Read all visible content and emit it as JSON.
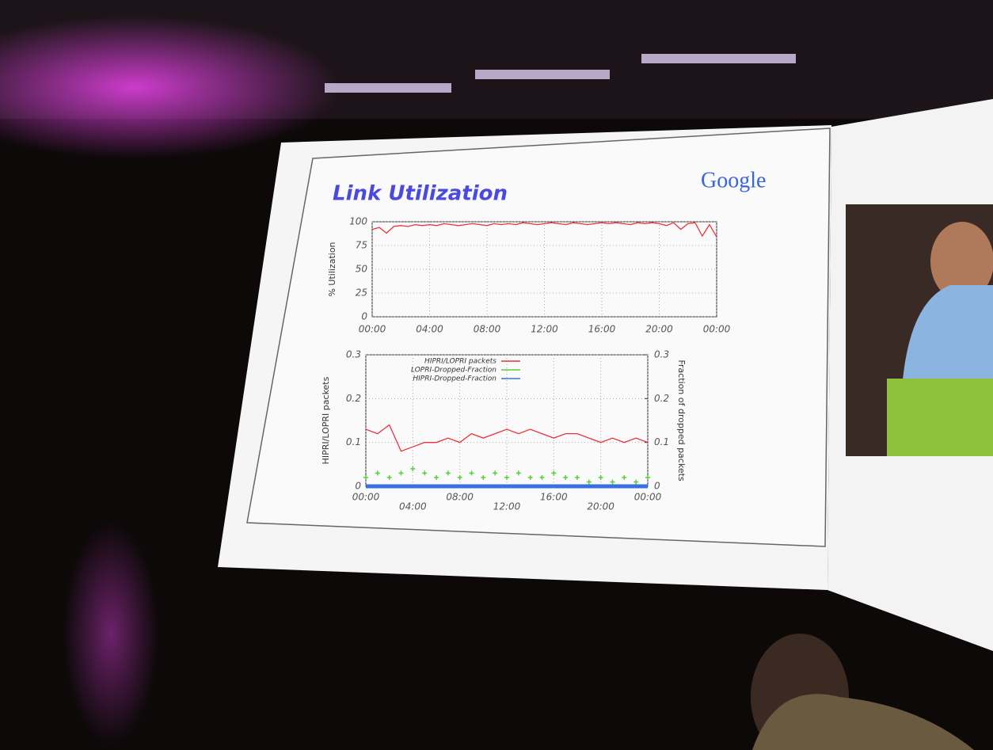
{
  "slide_title": "Link Utilization",
  "logo": "Google",
  "chart_data": [
    {
      "type": "line",
      "ylabel": "% Utilization",
      "color": "#e8333b",
      "x": [
        0,
        0.5,
        1,
        1.5,
        2,
        2.5,
        3,
        3.5,
        4,
        4.5,
        5,
        5.5,
        6,
        6.5,
        7,
        7.5,
        8,
        8.5,
        9,
        9.5,
        10,
        10.5,
        11,
        11.5,
        12,
        12.5,
        13,
        13.5,
        14,
        14.5,
        15,
        15.5,
        16,
        16.5,
        17,
        17.5,
        18,
        18.5,
        19,
        19.5,
        20,
        20.5,
        21,
        21.5,
        22,
        22.5,
        23,
        23.5,
        24
      ],
      "values": [
        92,
        94,
        88,
        95,
        96,
        95,
        97,
        96,
        97,
        96,
        98,
        97,
        96,
        97,
        98,
        97,
        96,
        98,
        97,
        98,
        97,
        99,
        98,
        97,
        98,
        99,
        98,
        97,
        99,
        98,
        97,
        98,
        99,
        98,
        99,
        98,
        97,
        99,
        98,
        99,
        98,
        96,
        99,
        92,
        98,
        99,
        85,
        97,
        84
      ],
      "xlim": [
        0,
        24
      ],
      "xticks": [
        {
          "value": 0,
          "label": "00:00"
        },
        {
          "value": 4,
          "label": "04:00"
        },
        {
          "value": 8,
          "label": "08:00"
        },
        {
          "value": 12,
          "label": "12:00"
        },
        {
          "value": 16,
          "label": "16:00"
        },
        {
          "value": 20,
          "label": "20:00"
        },
        {
          "value": 24,
          "label": "00:00"
        }
      ],
      "ylim": [
        0,
        100
      ],
      "yticks": [
        0,
        25,
        50,
        75,
        100
      ],
      "grid": true
    },
    {
      "type": "line",
      "ylabel": "HIPRI/LOPRI packets",
      "y2label": "Fraction of dropped packets",
      "legend": "top",
      "x": [
        0,
        1,
        2,
        3,
        4,
        5,
        6,
        7,
        8,
        9,
        10,
        11,
        12,
        13,
        14,
        15,
        16,
        17,
        18,
        19,
        20,
        21,
        22,
        23,
        24
      ],
      "series": [
        {
          "name": "HIPRI/LOPRI packets",
          "color": "#e8333b",
          "mode": "line",
          "values": [
            0.13,
            0.12,
            0.14,
            0.08,
            0.09,
            0.1,
            0.1,
            0.11,
            0.1,
            0.12,
            0.11,
            0.12,
            0.13,
            0.12,
            0.13,
            0.12,
            0.11,
            0.12,
            0.12,
            0.11,
            0.1,
            0.11,
            0.1,
            0.11,
            0.1
          ]
        },
        {
          "name": "LOPRI-Dropped-Fraction",
          "color": "#5ccc3a",
          "mode": "markers",
          "axis": "y2",
          "values": [
            0.02,
            0.03,
            0.02,
            0.03,
            0.04,
            0.03,
            0.02,
            0.03,
            0.02,
            0.03,
            0.02,
            0.03,
            0.02,
            0.03,
            0.02,
            0.02,
            0.03,
            0.02,
            0.02,
            0.01,
            0.02,
            0.01,
            0.02,
            0.01,
            0.02
          ]
        },
        {
          "name": "HIPRI-Dropped-Fraction",
          "color": "#3a6fe0",
          "mode": "line",
          "axis": "y2",
          "values": [
            0,
            0,
            0,
            0,
            0,
            0,
            0,
            0,
            0,
            0,
            0,
            0,
            0,
            0,
            0,
            0,
            0,
            0,
            0,
            0,
            0,
            0,
            0,
            0,
            0
          ]
        }
      ],
      "xlim": [
        0,
        24
      ],
      "xticks": [
        {
          "value": 0,
          "label": "00:00"
        },
        {
          "value": 4,
          "label": "04:00"
        },
        {
          "value": 8,
          "label": "08:00"
        },
        {
          "value": 12,
          "label": "12:00"
        },
        {
          "value": 16,
          "label": "16:00"
        },
        {
          "value": 20,
          "label": "20:00"
        },
        {
          "value": 24,
          "label": "00:00"
        }
      ],
      "ylim": [
        0,
        0.3
      ],
      "yticks": [
        0,
        0.1,
        0.2,
        0.3
      ],
      "y2lim": [
        0,
        0.3
      ],
      "y2ticks": [
        0,
        0.1,
        0.2,
        0.3
      ],
      "grid": true
    }
  ]
}
